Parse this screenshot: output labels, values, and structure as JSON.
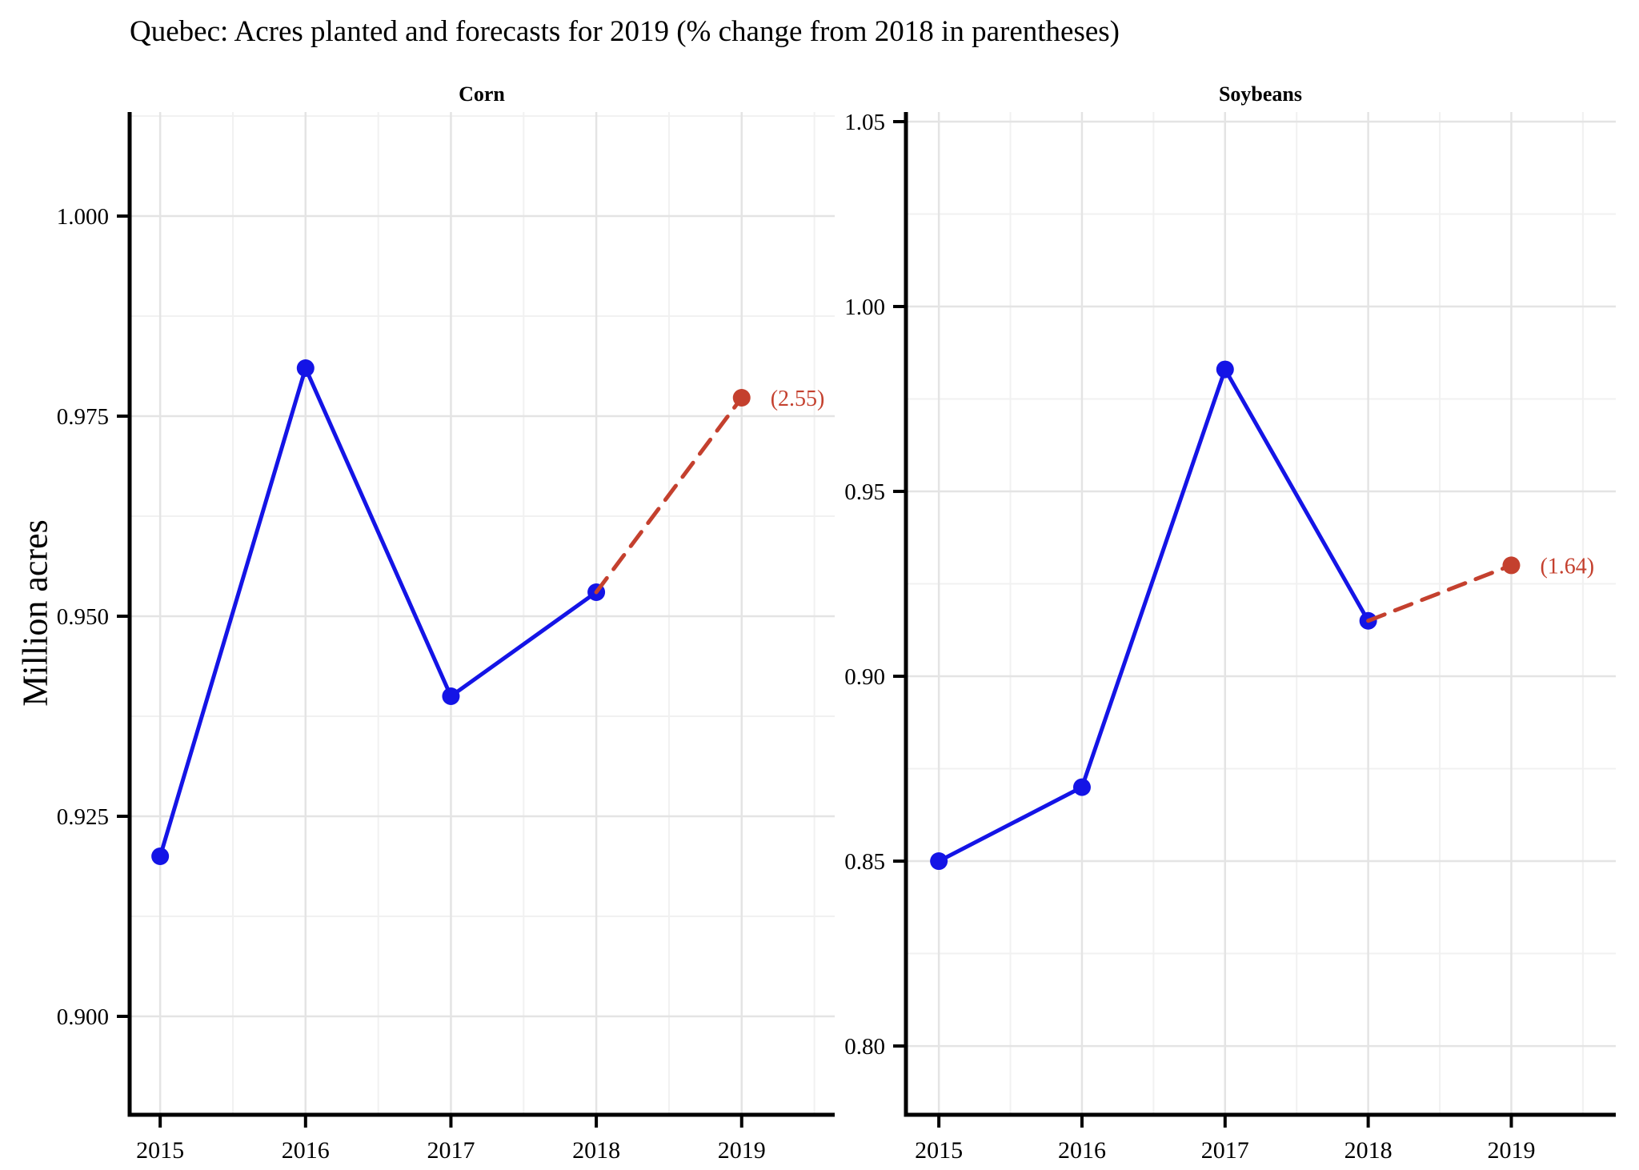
{
  "figure_title": "Quebec: Acres planted and forecasts for 2019 (% change from 2018 in parentheses)",
  "y_axis_title": "Million acres",
  "colors": {
    "actual_line": "#1414e6",
    "forecast_line": "#c4402e",
    "grid_major": "#e4e4e4",
    "grid_minor": "#f1f1f1",
    "axis": "#000000",
    "text": "#000000"
  },
  "chart_data": [
    {
      "type": "line",
      "title": "Corn",
      "ylabel": "Million acres",
      "categories": [
        "2015",
        "2016",
        "2017",
        "2018",
        "2019"
      ],
      "series": [
        {
          "name": "actual",
          "x": [
            2015,
            2016,
            2017,
            2018
          ],
          "values": [
            0.92,
            0.981,
            0.94,
            0.953
          ],
          "style": "solid"
        },
        {
          "name": "forecast",
          "x": [
            2018,
            2019
          ],
          "values": [
            0.953,
            0.9773
          ],
          "style": "dashed",
          "annotation": "(2.55)"
        }
      ],
      "ylim": [
        0.8877,
        1.013
      ],
      "xlim": [
        2014.79,
        2019.64
      ],
      "yticks": [
        0.9,
        0.925,
        0.95,
        0.975,
        1.0
      ],
      "ytick_labels": [
        "0.900",
        "0.925",
        "0.950",
        "0.975",
        "1.000"
      ],
      "xticks": [
        2015,
        2016,
        2017,
        2018,
        2019
      ],
      "xtick_labels": [
        "2015",
        "2016",
        "2017",
        "2018",
        "2019"
      ],
      "grid": "major+minor",
      "legend": "none"
    },
    {
      "type": "line",
      "title": "Soybeans",
      "ylabel": "Million acres",
      "categories": [
        "2015",
        "2016",
        "2017",
        "2018",
        "2019"
      ],
      "series": [
        {
          "name": "actual",
          "x": [
            2015,
            2016,
            2017,
            2018
          ],
          "values": [
            0.85,
            0.87,
            0.983,
            0.915
          ],
          "style": "solid"
        },
        {
          "name": "forecast",
          "x": [
            2018,
            2019
          ],
          "values": [
            0.915,
            0.93
          ],
          "style": "dashed",
          "annotation": "(1.64)"
        }
      ],
      "ylim": [
        0.7814,
        1.0526
      ],
      "xlim": [
        2014.77,
        2019.73
      ],
      "yticks": [
        0.8,
        0.85,
        0.9,
        0.95,
        1.0,
        1.05
      ],
      "ytick_labels": [
        "0.80",
        "0.85",
        "0.90",
        "0.95",
        "1.00",
        "1.05"
      ],
      "xticks": [
        2015,
        2016,
        2017,
        2018,
        2019
      ],
      "xtick_labels": [
        "2015",
        "2016",
        "2017",
        "2018",
        "2019"
      ],
      "grid": "major+minor",
      "legend": "none"
    }
  ]
}
